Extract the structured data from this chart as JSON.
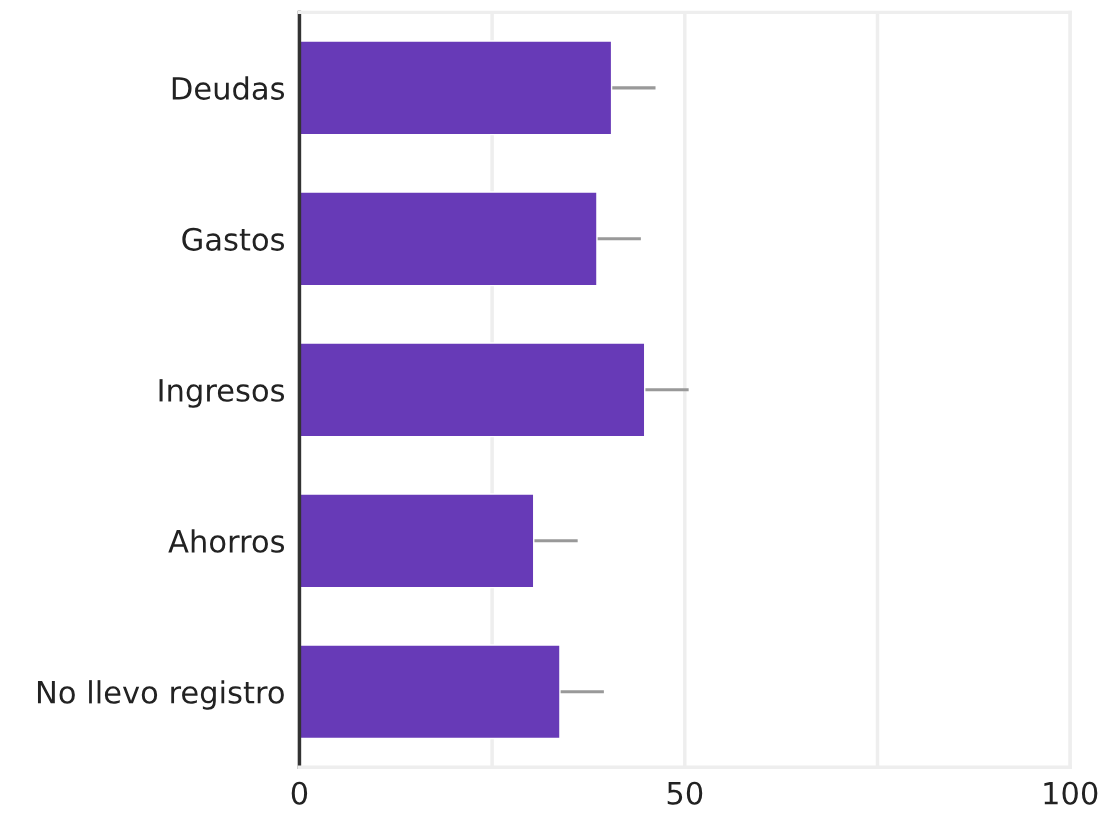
{
  "chart_data": {
    "type": "bar",
    "orientation": "horizontal",
    "categories": [
      "Deudas",
      "Gastos",
      "Ingresos",
      "Ahorros",
      "No llevo registro"
    ],
    "values": [
      40.5,
      38.6,
      44.8,
      30.4,
      33.8
    ],
    "errors": [
      5.7,
      5.7,
      5.7,
      5.7,
      5.7
    ],
    "color": "#673ab7",
    "xlim": [
      0,
      100
    ],
    "xticks": [
      0,
      {
        "value": 25,
        "label": null
      },
      50,
      {
        "value": 75,
        "label": null
      },
      100
    ],
    "grid": "x"
  }
}
